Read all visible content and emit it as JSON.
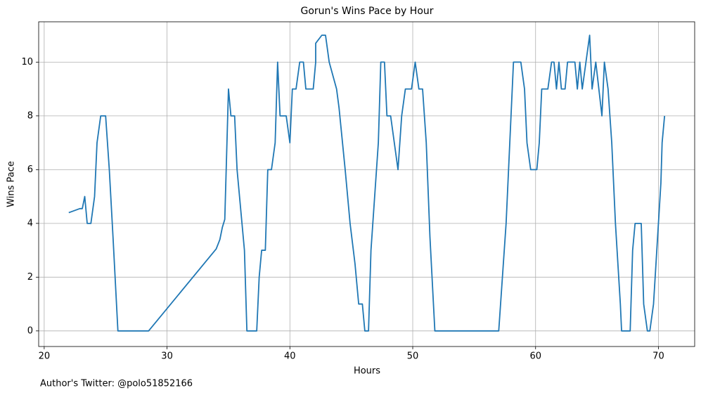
{
  "chart_data": {
    "type": "line",
    "title": "Gorun's Wins Pace by Hour",
    "x_label": "Hours",
    "y_label": "Wins Pace",
    "annotation": "Author's Twitter: @polo51852166",
    "color": "#1f77b4",
    "grid": true,
    "x": [
      22.0,
      22.9,
      23.1,
      23.3,
      23.5,
      23.8,
      24.1,
      24.3,
      24.6,
      25.0,
      25.3,
      25.6,
      26.0,
      28.5,
      34.0,
      34.3,
      34.5,
      34.7,
      35.0,
      35.2,
      35.5,
      35.7,
      36.1,
      36.3,
      36.5,
      37.3,
      37.5,
      37.7,
      38.0,
      38.2,
      38.5,
      38.8,
      39.0,
      39.2,
      39.7,
      40.0,
      40.2,
      40.5,
      40.8,
      41.1,
      41.3,
      41.9,
      42.1,
      42.1,
      42.6,
      42.9,
      43.2,
      43.5,
      43.8,
      44.0,
      44.5,
      44.9,
      45.3,
      45.6,
      45.9,
      46.1,
      46.4,
      46.6,
      46.9,
      47.2,
      47.4,
      47.7,
      47.9,
      48.2,
      48.5,
      48.8,
      49.1,
      49.4,
      49.9,
      50.2,
      50.5,
      50.8,
      51.1,
      51.4,
      51.8,
      57.0,
      57.6,
      57.9,
      58.2,
      58.8,
      59.1,
      59.3,
      59.6,
      60.1,
      60.3,
      60.5,
      61.0,
      61.3,
      61.5,
      61.7,
      61.9,
      62.1,
      62.4,
      62.6,
      63.2,
      63.4,
      63.6,
      63.8,
      64.1,
      64.4,
      64.6,
      64.9,
      65.4,
      65.6,
      65.9,
      66.2,
      66.5,
      66.9,
      67.0,
      67.7,
      67.9,
      68.1,
      68.6,
      68.8,
      69.1,
      69.3,
      69.6,
      70.0,
      70.2,
      70.3,
      70.5
    ],
    "values": [
      4.4,
      4.55,
      4.55,
      5,
      4,
      4,
      5,
      7,
      8,
      8,
      6,
      3.5,
      0,
      0,
      3.05,
      3.4,
      3.85,
      4.15,
      9,
      8,
      8,
      6,
      4,
      3,
      0,
      0,
      2,
      3,
      3,
      6,
      6,
      7,
      10,
      8,
      8,
      7,
      9,
      9,
      10,
      10,
      9,
      9,
      10,
      10.7,
      11,
      11,
      10,
      9.5,
      9,
      8.3,
      6,
      4,
      2.5,
      1,
      1,
      0,
      0,
      3,
      5,
      7,
      10,
      10,
      8,
      8,
      7,
      6,
      8,
      9,
      9,
      10,
      9,
      9,
      7,
      3.5,
      0,
      0,
      4,
      7,
      10,
      10,
      9,
      7,
      6,
      6,
      7,
      9,
      9,
      10,
      10,
      9,
      10,
      9,
      9,
      10,
      10,
      9,
      10,
      9,
      10,
      11,
      9,
      10,
      8,
      10,
      9,
      7,
      4,
      1,
      0,
      0,
      3,
      4,
      4,
      1,
      0,
      0,
      1,
      4,
      5.5,
      7,
      8
    ],
    "xlim": [
      19.55,
      72.95
    ],
    "ylim": [
      -0.58,
      11.5
    ],
    "xticks": [
      20,
      30,
      40,
      50,
      60,
      70
    ],
    "yticks": [
      0,
      2,
      4,
      6,
      8,
      10
    ]
  }
}
